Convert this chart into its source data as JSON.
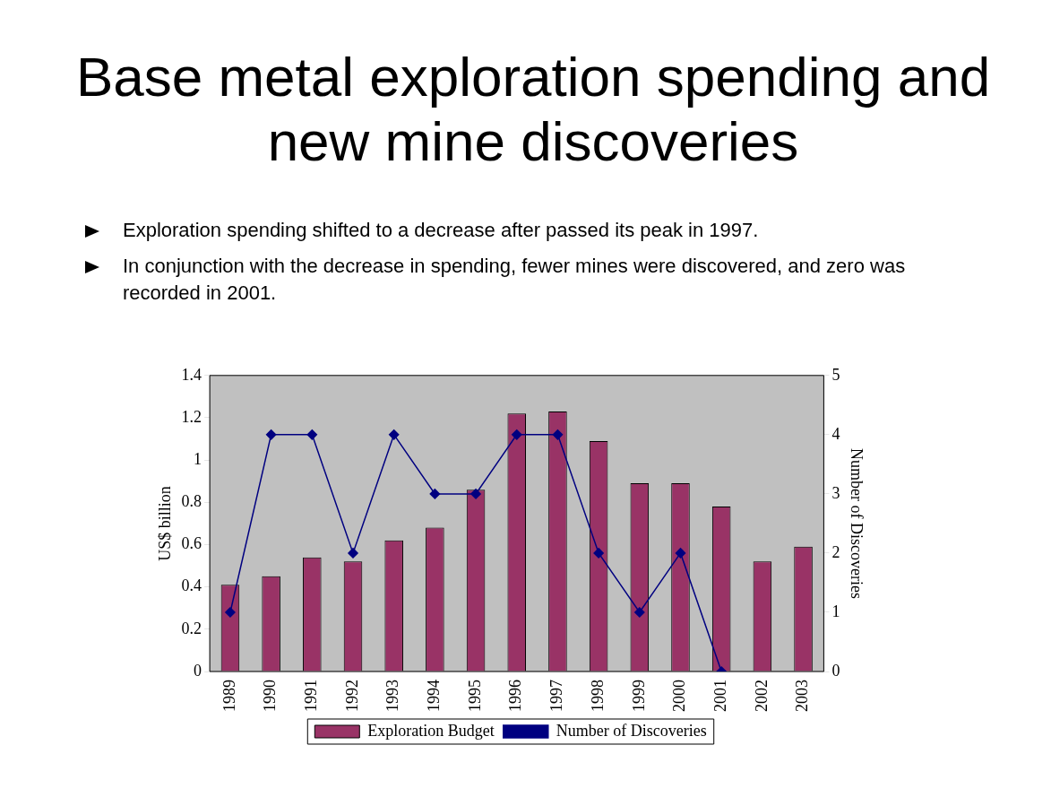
{
  "chart_data": {
    "type": "bar",
    "title": "Base metal exploration spending and new mine discoveries",
    "annotations": [
      "Exploration spending shifted to a decrease after passed its peak in 1997.",
      "In conjunction with the decrease in spending, fewer mines were discovered, and zero was recorded in 2001."
    ],
    "categories": [
      "1989",
      "1990",
      "1991",
      "1992",
      "1993",
      "1994",
      "1995",
      "1996",
      "1997",
      "1998",
      "1999",
      "2000",
      "2001",
      "2002",
      "2003"
    ],
    "series": [
      {
        "name": "Exploration Budget",
        "color": "#993366",
        "values": [
          0.41,
          0.45,
          0.54,
          0.52,
          0.62,
          0.68,
          0.86,
          1.22,
          1.23,
          1.09,
          0.89,
          0.89,
          0.78,
          0.52,
          0.59
        ]
      },
      {
        "name": "Number of Discoveries",
        "type": "line",
        "axis": "y2",
        "color": "#000080",
        "values": [
          1,
          4,
          4,
          2,
          4,
          3,
          3,
          4,
          4,
          2,
          1,
          2,
          0,
          null,
          null
        ]
      }
    ],
    "ylabel": "US$ billion",
    "y2label": "Number of Discoveries",
    "ylim": [
      0,
      1.4
    ],
    "yticks": [
      0,
      0.2,
      0.4,
      0.6,
      0.8,
      1,
      1.2,
      1.4
    ],
    "y2lim": [
      0,
      5
    ],
    "y2ticks": [
      0,
      1,
      2,
      3,
      4,
      5
    ],
    "legend": "bottom",
    "grid": false,
    "marker": "diamond"
  }
}
